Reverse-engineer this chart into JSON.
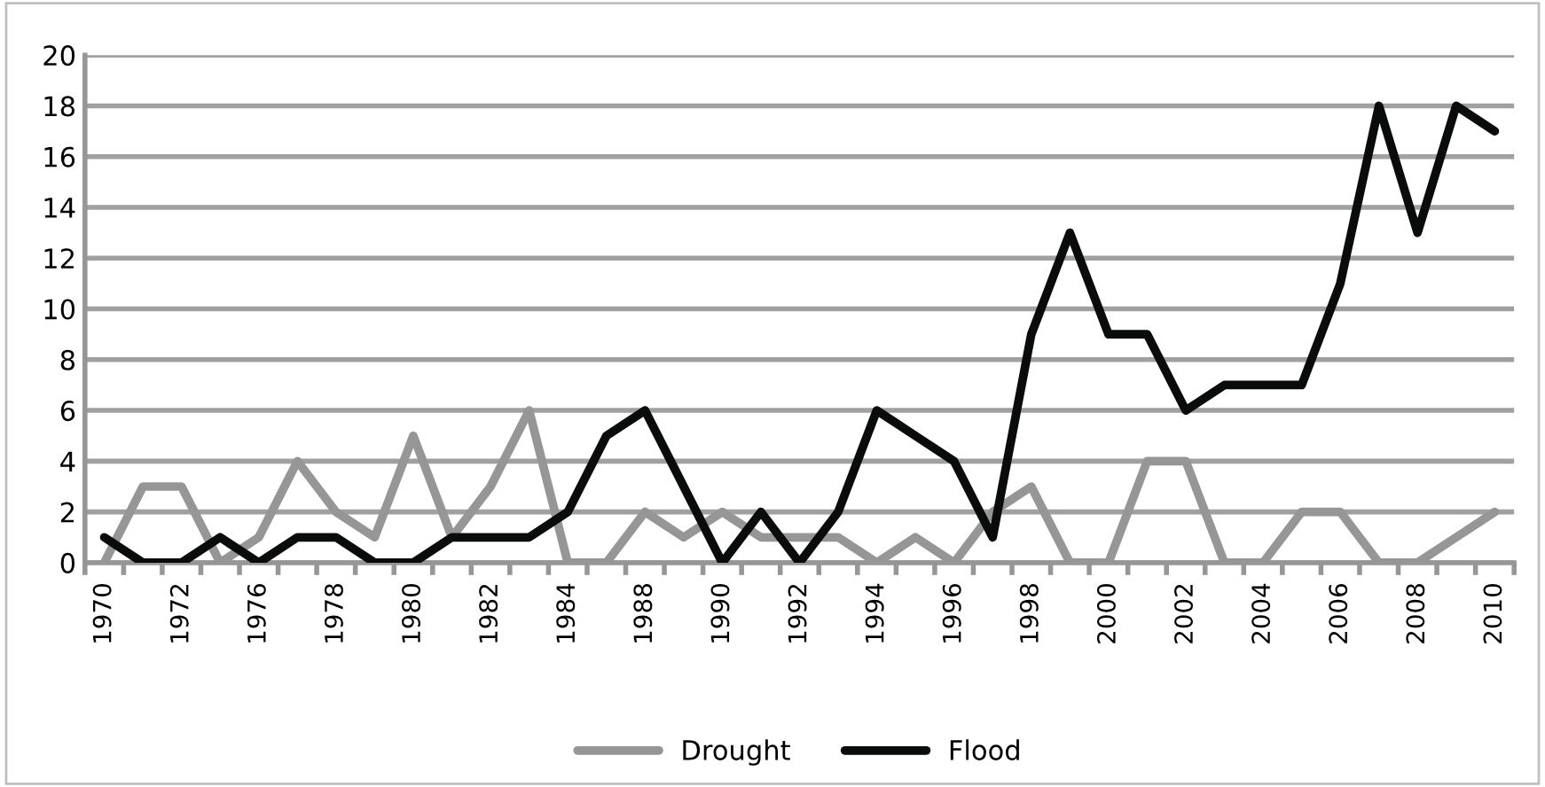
{
  "chart_data": {
    "type": "line",
    "categories": [
      "1970",
      null,
      "1972",
      null,
      "1976",
      null,
      "1978",
      null,
      "1980",
      null,
      "1982",
      null,
      "1984",
      null,
      "1988",
      null,
      "1990",
      null,
      "1992",
      null,
      "1994",
      null,
      "1996",
      null,
      "1998",
      null,
      "2000",
      null,
      "2002",
      null,
      "2004",
      null,
      "2006",
      null,
      "2008",
      null,
      "2010"
    ],
    "series": [
      {
        "name": "Drought",
        "color": "#969696",
        "values": [
          0,
          3,
          3,
          0,
          1,
          4,
          2,
          1,
          5,
          1,
          3,
          6,
          0,
          0,
          2,
          1,
          2,
          1,
          1,
          1,
          0,
          1,
          0,
          2,
          3,
          0,
          0,
          4,
          4,
          0,
          0,
          2,
          2,
          0,
          0,
          1,
          2
        ]
      },
      {
        "name": "Flood",
        "color": "#0a0c0c",
        "values": [
          1,
          0,
          0,
          1,
          0,
          1,
          1,
          0,
          0,
          1,
          1,
          1,
          2,
          5,
          6,
          3,
          0,
          2,
          0,
          2,
          6,
          5,
          4,
          1,
          9,
          13,
          9,
          9,
          6,
          7,
          7,
          7,
          11,
          18,
          13,
          18,
          17
        ]
      }
    ],
    "ylim": [
      0,
      20
    ],
    "yticks": [
      0,
      2,
      4,
      6,
      8,
      10,
      12,
      14,
      16,
      18,
      20
    ],
    "grid": "y",
    "legend": "bottom",
    "marker": "none",
    "line_style": "solid"
  }
}
